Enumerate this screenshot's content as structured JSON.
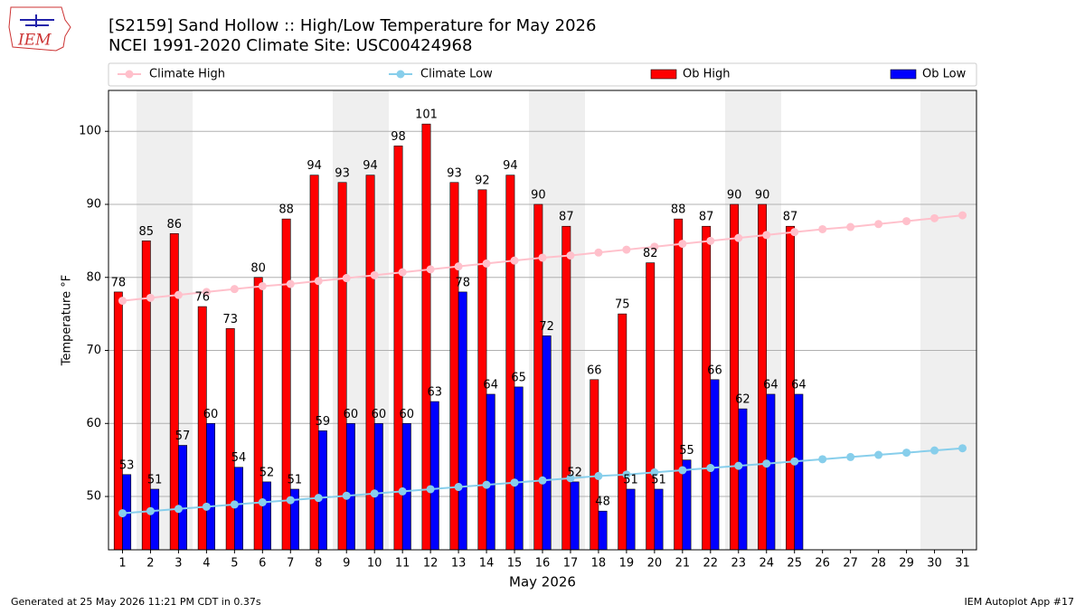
{
  "logo": "IEM",
  "chart_data": {
    "type": "bar",
    "title": "[S2159] Sand Hollow :: High/Low Temperature for May 2026",
    "subtitle": "NCEI 1991-2020 Climate Site: USC00424968",
    "x_label": "May 2026",
    "y_label": "Temperature °F",
    "footer_left": "Generated at 25 May 2026 11:21 PM CDT in 0.37s",
    "footer_right": "IEM Autoplot App #17",
    "categories": [
      "1",
      "2",
      "3",
      "4",
      "5",
      "6",
      "7",
      "8",
      "9",
      "10",
      "11",
      "12",
      "13",
      "14",
      "15",
      "16",
      "17",
      "18",
      "19",
      "20",
      "21",
      "22",
      "23",
      "24",
      "25",
      "26",
      "27",
      "28",
      "29",
      "30",
      "31"
    ],
    "series": [
      {
        "name": "Climate High",
        "type": "line",
        "color": "#ffc0cb",
        "values": [
          76.8,
          77.2,
          77.6,
          78.0,
          78.4,
          78.8,
          79.1,
          79.5,
          79.9,
          80.3,
          80.7,
          81.1,
          81.5,
          81.9,
          82.3,
          82.7,
          83.0,
          83.4,
          83.8,
          84.2,
          84.6,
          85.0,
          85.4,
          85.8,
          86.2,
          86.6,
          86.9,
          87.3,
          87.7,
          88.1,
          88.5
        ]
      },
      {
        "name": "Climate Low",
        "type": "line",
        "color": "#87ceeb",
        "values": [
          47.7,
          48.0,
          48.3,
          48.6,
          48.9,
          49.2,
          49.5,
          49.8,
          50.1,
          50.4,
          50.7,
          51.0,
          51.3,
          51.6,
          51.9,
          52.2,
          52.5,
          52.8,
          53.0,
          53.3,
          53.6,
          53.9,
          54.2,
          54.5,
          54.8,
          55.1,
          55.4,
          55.7,
          56.0,
          56.3,
          56.6
        ]
      },
      {
        "name": "Ob High",
        "type": "bar",
        "color": "#ff0000",
        "values": [
          78,
          85,
          86,
          76,
          73,
          80,
          88,
          94,
          93,
          94,
          98,
          101,
          93,
          92,
          94,
          90,
          87,
          66,
          75,
          82,
          88,
          87,
          90,
          90,
          87,
          null,
          null,
          null,
          null,
          null,
          null
        ]
      },
      {
        "name": "Ob Low",
        "type": "bar",
        "color": "#0000ff",
        "values": [
          53,
          51,
          57,
          60,
          54,
          52,
          51,
          59,
          60,
          60,
          60,
          63,
          78,
          64,
          65,
          72,
          52,
          48,
          51,
          51,
          55,
          66,
          62,
          64,
          64,
          null,
          null,
          null,
          null,
          null,
          null
        ]
      }
    ],
    "ylim": [
      42.7,
      105.6
    ],
    "yticks": [
      50,
      60,
      70,
      80,
      90,
      100
    ],
    "grid": true
  }
}
